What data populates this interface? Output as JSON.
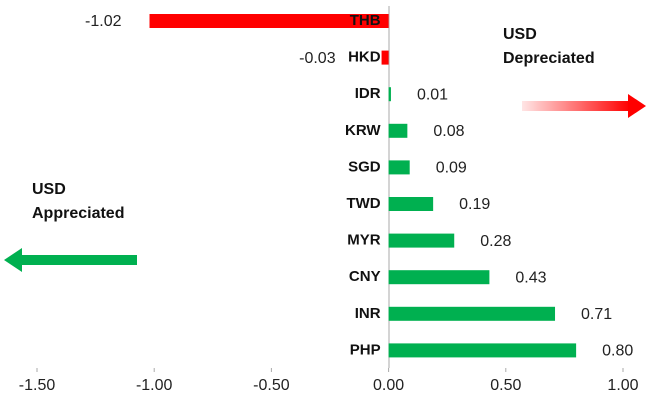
{
  "chart_data": {
    "type": "barh",
    "categories": [
      "THB",
      "HKD",
      "IDR",
      "KRW",
      "SGD",
      "TWD",
      "MYR",
      "CNY",
      "INR",
      "PHP"
    ],
    "values": [
      -1.02,
      -0.03,
      0.01,
      0.08,
      0.09,
      0.19,
      0.28,
      0.43,
      0.71,
      0.8
    ],
    "value_labels": [
      "-1.02",
      "-0.03",
      "0.01",
      "0.08",
      "0.09",
      "0.19",
      "0.28",
      "0.43",
      "0.71",
      "0.80"
    ],
    "color_positive": "#00b050",
    "color_negative": "#ff0000",
    "xlim": [
      -1.5,
      1.0
    ],
    "xticks": [
      {
        "value": -1.5,
        "label": "-1.50"
      },
      {
        "value": -1.0,
        "label": "-1.00"
      },
      {
        "value": -0.5,
        "label": "-0.50"
      },
      {
        "value": 0,
        "label": "0.00"
      },
      {
        "value": 0.5,
        "label": "0.50"
      },
      {
        "value": 1.0,
        "label": "1.00"
      }
    ],
    "grid": false,
    "annotations": [
      {
        "lines": [
          "USD",
          "Depreciated"
        ]
      },
      {
        "lines": [
          "USD",
          "Appreciated"
        ]
      }
    ]
  }
}
